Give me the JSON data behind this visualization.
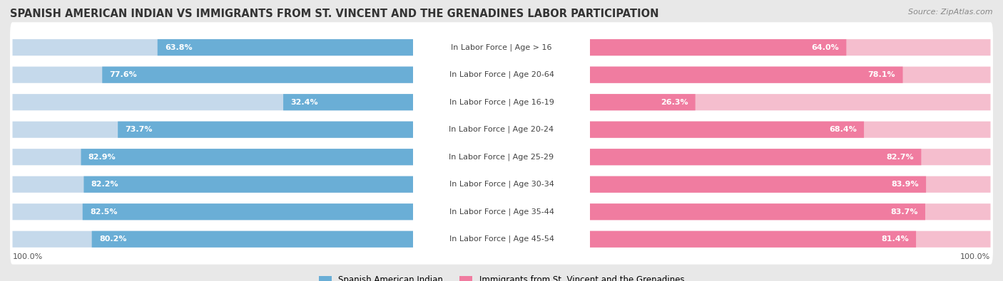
{
  "title": "SPANISH AMERICAN INDIAN VS IMMIGRANTS FROM ST. VINCENT AND THE GRENADINES LABOR PARTICIPATION",
  "source": "Source: ZipAtlas.com",
  "categories": [
    "In Labor Force | Age > 16",
    "In Labor Force | Age 20-64",
    "In Labor Force | Age 16-19",
    "In Labor Force | Age 20-24",
    "In Labor Force | Age 25-29",
    "In Labor Force | Age 30-34",
    "In Labor Force | Age 35-44",
    "In Labor Force | Age 45-54"
  ],
  "left_values": [
    63.8,
    77.6,
    32.4,
    73.7,
    82.9,
    82.2,
    82.5,
    80.2
  ],
  "right_values": [
    64.0,
    78.1,
    26.3,
    68.4,
    82.7,
    83.9,
    83.7,
    81.4
  ],
  "left_color": "#6aaed6",
  "right_color": "#f07ca0",
  "left_label": "Spanish American Indian",
  "right_label": "Immigrants from St. Vincent and the Grenadines",
  "bg_color": "#e8e8e8",
  "bar_bg_left": "#c5d9eb",
  "bar_bg_right": "#f5bece",
  "row_bg": "#ffffff",
  "max_val": 100.0,
  "title_fontsize": 10.5,
  "source_fontsize": 8,
  "label_fontsize": 8,
  "value_fontsize": 8
}
